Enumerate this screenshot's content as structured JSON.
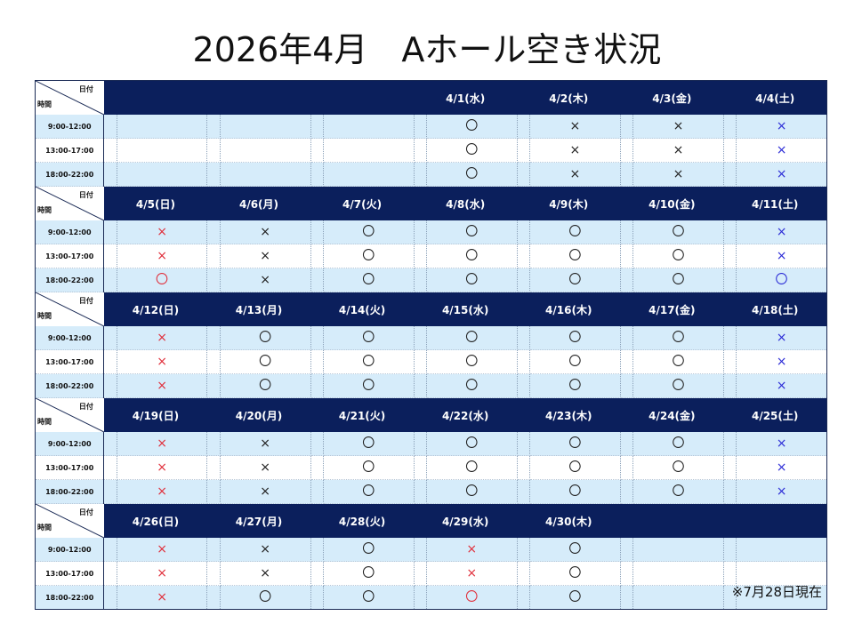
{
  "title": "2026年4月　Aホール空き状況",
  "corner": {
    "date_label": "日付",
    "time_label": "時間"
  },
  "slots": [
    "9:00-12:00",
    "13:00-17:00",
    "18:00-22:00"
  ],
  "colors": {
    "header_bg": "#0b1f5c",
    "row_blue": "#d6ecfa",
    "mark_red": "#e0303c",
    "mark_blue": "#2b2bd6",
    "mark_black": "#222222"
  },
  "weeks": [
    {
      "days": [
        "",
        "",
        "",
        "4/1(水)",
        "4/2(木)",
        "4/3(金)",
        "4/4(土)"
      ],
      "rows": [
        [
          {
            "m": "",
            "c": ""
          },
          {
            "m": "",
            "c": ""
          },
          {
            "m": "",
            "c": ""
          },
          {
            "m": "〇",
            "c": "black"
          },
          {
            "m": "×",
            "c": "black"
          },
          {
            "m": "×",
            "c": "black"
          },
          {
            "m": "×",
            "c": "blue"
          }
        ],
        [
          {
            "m": "",
            "c": ""
          },
          {
            "m": "",
            "c": ""
          },
          {
            "m": "",
            "c": ""
          },
          {
            "m": "〇",
            "c": "black"
          },
          {
            "m": "×",
            "c": "black"
          },
          {
            "m": "×",
            "c": "black"
          },
          {
            "m": "×",
            "c": "blue"
          }
        ],
        [
          {
            "m": "",
            "c": ""
          },
          {
            "m": "",
            "c": ""
          },
          {
            "m": "",
            "c": ""
          },
          {
            "m": "〇",
            "c": "black"
          },
          {
            "m": "×",
            "c": "black"
          },
          {
            "m": "×",
            "c": "black"
          },
          {
            "m": "×",
            "c": "blue"
          }
        ]
      ]
    },
    {
      "days": [
        "4/5(日)",
        "4/6(月)",
        "4/7(火)",
        "4/8(水)",
        "4/9(木)",
        "4/10(金)",
        "4/11(土)"
      ],
      "rows": [
        [
          {
            "m": "×",
            "c": "red"
          },
          {
            "m": "×",
            "c": "black"
          },
          {
            "m": "〇",
            "c": "black"
          },
          {
            "m": "〇",
            "c": "black"
          },
          {
            "m": "〇",
            "c": "black"
          },
          {
            "m": "〇",
            "c": "black"
          },
          {
            "m": "×",
            "c": "blue"
          }
        ],
        [
          {
            "m": "×",
            "c": "red"
          },
          {
            "m": "×",
            "c": "black"
          },
          {
            "m": "〇",
            "c": "black"
          },
          {
            "m": "〇",
            "c": "black"
          },
          {
            "m": "〇",
            "c": "black"
          },
          {
            "m": "〇",
            "c": "black"
          },
          {
            "m": "×",
            "c": "blue"
          }
        ],
        [
          {
            "m": "〇",
            "c": "red"
          },
          {
            "m": "×",
            "c": "black"
          },
          {
            "m": "〇",
            "c": "black"
          },
          {
            "m": "〇",
            "c": "black"
          },
          {
            "m": "〇",
            "c": "black"
          },
          {
            "m": "〇",
            "c": "black"
          },
          {
            "m": "〇",
            "c": "blue"
          }
        ]
      ]
    },
    {
      "days": [
        "4/12(日)",
        "4/13(月)",
        "4/14(火)",
        "4/15(水)",
        "4/16(木)",
        "4/17(金)",
        "4/18(土)"
      ],
      "rows": [
        [
          {
            "m": "×",
            "c": "red"
          },
          {
            "m": "〇",
            "c": "black"
          },
          {
            "m": "〇",
            "c": "black"
          },
          {
            "m": "〇",
            "c": "black"
          },
          {
            "m": "〇",
            "c": "black"
          },
          {
            "m": "〇",
            "c": "black"
          },
          {
            "m": "×",
            "c": "blue"
          }
        ],
        [
          {
            "m": "×",
            "c": "red"
          },
          {
            "m": "〇",
            "c": "black"
          },
          {
            "m": "〇",
            "c": "black"
          },
          {
            "m": "〇",
            "c": "black"
          },
          {
            "m": "〇",
            "c": "black"
          },
          {
            "m": "〇",
            "c": "black"
          },
          {
            "m": "×",
            "c": "blue"
          }
        ],
        [
          {
            "m": "×",
            "c": "red"
          },
          {
            "m": "〇",
            "c": "black"
          },
          {
            "m": "〇",
            "c": "black"
          },
          {
            "m": "〇",
            "c": "black"
          },
          {
            "m": "〇",
            "c": "black"
          },
          {
            "m": "〇",
            "c": "black"
          },
          {
            "m": "×",
            "c": "blue"
          }
        ]
      ]
    },
    {
      "days": [
        "4/19(日)",
        "4/20(月)",
        "4/21(火)",
        "4/22(水)",
        "4/23(木)",
        "4/24(金)",
        "4/25(土)"
      ],
      "rows": [
        [
          {
            "m": "×",
            "c": "red"
          },
          {
            "m": "×",
            "c": "black"
          },
          {
            "m": "〇",
            "c": "black"
          },
          {
            "m": "〇",
            "c": "black"
          },
          {
            "m": "〇",
            "c": "black"
          },
          {
            "m": "〇",
            "c": "black"
          },
          {
            "m": "×",
            "c": "blue"
          }
        ],
        [
          {
            "m": "×",
            "c": "red"
          },
          {
            "m": "×",
            "c": "black"
          },
          {
            "m": "〇",
            "c": "black"
          },
          {
            "m": "〇",
            "c": "black"
          },
          {
            "m": "〇",
            "c": "black"
          },
          {
            "m": "〇",
            "c": "black"
          },
          {
            "m": "×",
            "c": "blue"
          }
        ],
        [
          {
            "m": "×",
            "c": "red"
          },
          {
            "m": "×",
            "c": "black"
          },
          {
            "m": "〇",
            "c": "black"
          },
          {
            "m": "〇",
            "c": "black"
          },
          {
            "m": "〇",
            "c": "black"
          },
          {
            "m": "〇",
            "c": "black"
          },
          {
            "m": "×",
            "c": "blue"
          }
        ]
      ]
    },
    {
      "days": [
        "4/26(日)",
        "4/27(月)",
        "4/28(火)",
        "4/29(水)",
        "4/30(木)",
        "",
        ""
      ],
      "rows": [
        [
          {
            "m": "×",
            "c": "red"
          },
          {
            "m": "×",
            "c": "black"
          },
          {
            "m": "〇",
            "c": "black"
          },
          {
            "m": "×",
            "c": "red"
          },
          {
            "m": "〇",
            "c": "black"
          },
          {
            "m": "",
            "c": ""
          },
          {
            "m": "",
            "c": ""
          }
        ],
        [
          {
            "m": "×",
            "c": "red"
          },
          {
            "m": "×",
            "c": "black"
          },
          {
            "m": "〇",
            "c": "black"
          },
          {
            "m": "×",
            "c": "red"
          },
          {
            "m": "〇",
            "c": "black"
          },
          {
            "m": "",
            "c": ""
          },
          {
            "m": "",
            "c": ""
          }
        ],
        [
          {
            "m": "×",
            "c": "red"
          },
          {
            "m": "〇",
            "c": "black"
          },
          {
            "m": "〇",
            "c": "black"
          },
          {
            "m": "〇",
            "c": "red"
          },
          {
            "m": "〇",
            "c": "black"
          },
          {
            "m": "",
            "c": ""
          },
          {
            "m": "",
            "c": ""
          }
        ]
      ]
    }
  ],
  "note": "※7月28日現在"
}
